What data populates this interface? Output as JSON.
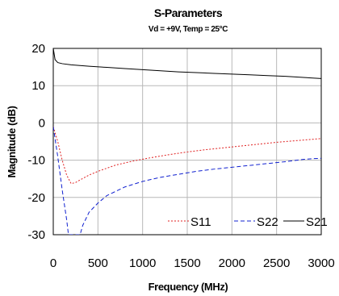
{
  "chart_data": {
    "type": "line",
    "title": "S-Parameters",
    "subtitle": "Vd = +9V, Temp = 25°C",
    "xlabel": "Frequency (MHz)",
    "ylabel": "Magnitude (dB)",
    "xlim": [
      0,
      3000
    ],
    "ylim": [
      -30,
      20
    ],
    "xticks": [
      0,
      500,
      1000,
      1500,
      2000,
      2500,
      3000
    ],
    "yticks": [
      20,
      10,
      0,
      -10,
      -20,
      -30
    ],
    "x_tick_labels": [
      "0",
      "500",
      "1000",
      "1500",
      "2000",
      "2500",
      "3000"
    ],
    "y_tick_labels": [
      "20",
      "10",
      "0",
      "-10",
      "-20",
      "-30"
    ],
    "grid": true,
    "legend_position": "bottom-right",
    "series": [
      {
        "name": "S11",
        "color": "#e02020",
        "style": "dotted",
        "points": [
          [
            0,
            -1
          ],
          [
            50,
            -5
          ],
          [
            100,
            -10
          ],
          [
            150,
            -14
          ],
          [
            200,
            -16.3
          ],
          [
            250,
            -16
          ],
          [
            300,
            -15.3
          ],
          [
            400,
            -14
          ],
          [
            500,
            -13
          ],
          [
            700,
            -11.3
          ],
          [
            900,
            -10.2
          ],
          [
            1100,
            -9.3
          ],
          [
            1300,
            -8.5
          ],
          [
            1500,
            -7.8
          ],
          [
            1700,
            -7.2
          ],
          [
            1900,
            -6.7
          ],
          [
            2100,
            -6.2
          ],
          [
            2300,
            -5.7
          ],
          [
            2500,
            -5.2
          ],
          [
            2700,
            -4.8
          ],
          [
            2900,
            -4.4
          ],
          [
            3000,
            -4.2
          ]
        ]
      },
      {
        "name": "S22",
        "color": "#1020d0",
        "style": "dashed",
        "points": [
          [
            0,
            -1
          ],
          [
            50,
            -9
          ],
          [
            100,
            -18
          ],
          [
            150,
            -26
          ],
          [
            170,
            -30
          ],
          [
            300,
            -30
          ],
          [
            330,
            -27.5
          ],
          [
            400,
            -24
          ],
          [
            500,
            -21.5
          ],
          [
            600,
            -19.5
          ],
          [
            800,
            -17.2
          ],
          [
            1000,
            -15.7
          ],
          [
            1200,
            -14.6
          ],
          [
            1400,
            -13.8
          ],
          [
            1600,
            -13
          ],
          [
            1800,
            -12.4
          ],
          [
            2000,
            -11.9
          ],
          [
            2200,
            -11.4
          ],
          [
            2400,
            -10.9
          ],
          [
            2600,
            -10.4
          ],
          [
            2800,
            -9.8
          ],
          [
            2900,
            -9.6
          ],
          [
            3000,
            -9.5
          ]
        ]
      },
      {
        "name": "S21",
        "color": "#000000",
        "style": "solid",
        "points": [
          [
            0,
            20
          ],
          [
            20,
            17
          ],
          [
            50,
            16.2
          ],
          [
            100,
            15.9
          ],
          [
            200,
            15.6
          ],
          [
            400,
            15.2
          ],
          [
            600,
            14.9
          ],
          [
            800,
            14.6
          ],
          [
            1000,
            14.3
          ],
          [
            1200,
            14.0
          ],
          [
            1400,
            13.7
          ],
          [
            1600,
            13.5
          ],
          [
            1800,
            13.3
          ],
          [
            2000,
            13.1
          ],
          [
            2200,
            12.9
          ],
          [
            2400,
            12.7
          ],
          [
            2600,
            12.5
          ],
          [
            2800,
            12.2
          ],
          [
            3000,
            11.9
          ]
        ]
      }
    ]
  }
}
